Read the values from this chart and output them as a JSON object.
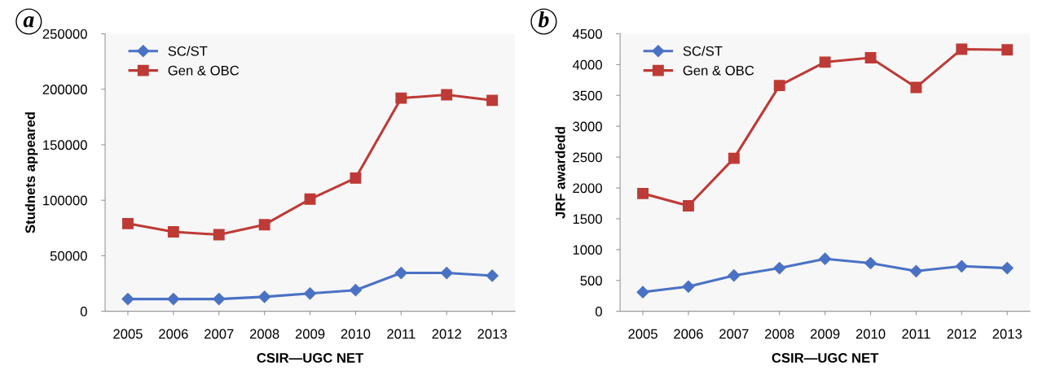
{
  "chart_data": [
    {
      "type": "line",
      "title": "a",
      "xlabel": "CSIR—UGC NET",
      "ylabel": "Studnets appeared",
      "categories": [
        "2005",
        "2006",
        "2007",
        "2008",
        "2009",
        "2010",
        "2011",
        "2012",
        "2013"
      ],
      "series": [
        {
          "name": "SC/ST",
          "color": "#4a72c4",
          "marker": "diamond",
          "values": [
            11000,
            11000,
            11000,
            13000,
            16000,
            19000,
            34500,
            34500,
            32000
          ]
        },
        {
          "name": "Gen & OBC",
          "color": "#be3a36",
          "marker": "square",
          "values": [
            79000,
            71500,
            69000,
            78000,
            101000,
            120000,
            192000,
            195000,
            190000
          ]
        }
      ],
      "ylim": [
        0,
        250000
      ],
      "yticks": [
        0,
        50000,
        100000,
        150000,
        200000,
        250000
      ],
      "grid": false,
      "legend": "top left"
    },
    {
      "type": "line",
      "title": "b",
      "xlabel": "CSIR—UGC NET",
      "ylabel": "JRF awardedd",
      "categories": [
        "2005",
        "2006",
        "2007",
        "2008",
        "2009",
        "2010",
        "2011",
        "2012",
        "2013"
      ],
      "series": [
        {
          "name": "SC/ST",
          "color": "#4a72c4",
          "marker": "diamond",
          "values": [
            310,
            400,
            580,
            700,
            850,
            780,
            650,
            730,
            700
          ]
        },
        {
          "name": "Gen & OBC",
          "color": "#be3a36",
          "marker": "square",
          "values": [
            1910,
            1710,
            2480,
            3660,
            4040,
            4110,
            3630,
            4250,
            4240
          ]
        }
      ],
      "ylim": [
        0,
        4500
      ],
      "yticks": [
        0,
        500,
        1000,
        1500,
        2000,
        2500,
        3000,
        3500,
        4000,
        4500
      ],
      "grid": false,
      "legend": "top left"
    }
  ]
}
